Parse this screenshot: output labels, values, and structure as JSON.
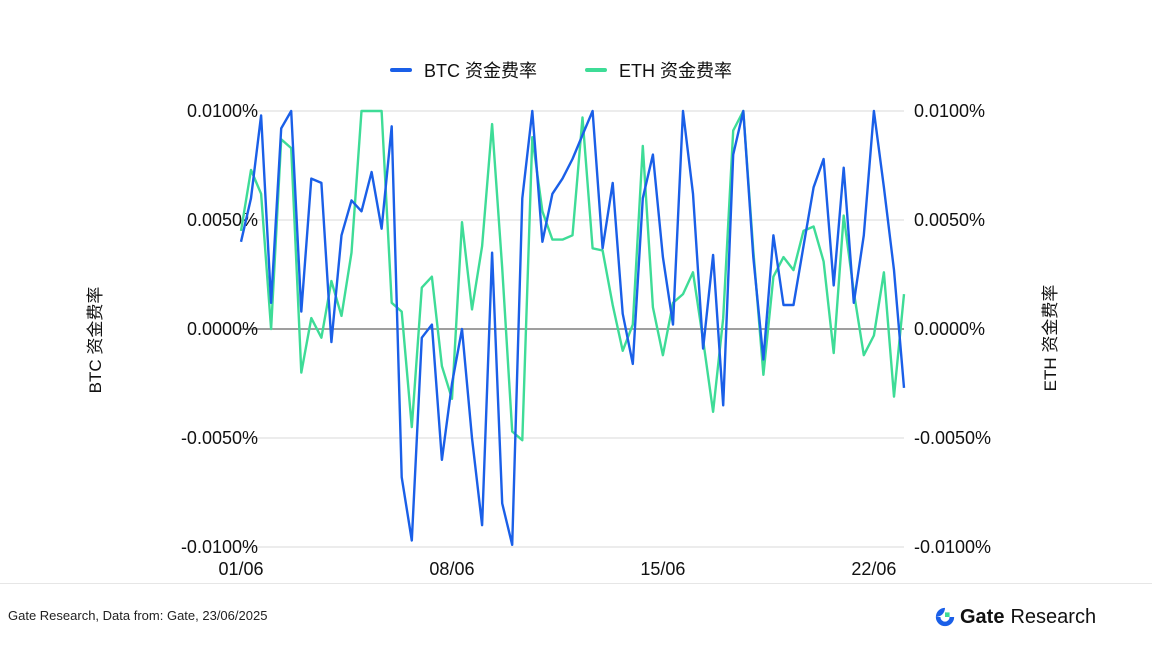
{
  "chart_data": {
    "type": "line",
    "title": "",
    "ylabel_left": "BTC 资金费率",
    "ylabel_right": "ETH 资金费率",
    "ylim": [
      -0.0001,
      0.0001
    ],
    "yticks": [
      "0.0100%",
      "0.0050%",
      "0.0000%",
      "-0.0050%",
      "-0.0100%"
    ],
    "ytick_values": [
      0.0001,
      5e-05,
      0,
      -5e-05,
      -0.0001
    ],
    "xtick_labels": [
      "01/06",
      "08/06",
      "15/06",
      "22/06"
    ],
    "xtick_index": [
      0,
      21,
      42,
      63
    ],
    "grid": true,
    "legend_position": "top-center",
    "series": [
      {
        "name": "BTC 资金费率",
        "color": "#1a5fe8",
        "values": [
          4e-05,
          6e-05,
          9.8e-05,
          1.2e-05,
          9.2e-05,
          0.0001,
          8e-06,
          6.9e-05,
          6.7e-05,
          -6e-06,
          4.3e-05,
          5.9e-05,
          5.4e-05,
          7.2e-05,
          4.6e-05,
          9.3e-05,
          -6.8e-05,
          -9.7e-05,
          -4e-06,
          2e-06,
          -6e-05,
          -2.5e-05,
          0.0,
          -5e-05,
          -9e-05,
          3.5e-05,
          -8e-05,
          -9.9e-05,
          6e-05,
          0.0001,
          4e-05,
          6.2e-05,
          6.9e-05,
          7.8e-05,
          8.9e-05,
          0.0001,
          3.7e-05,
          6.7e-05,
          7e-06,
          -1.6e-05,
          6e-05,
          8e-05,
          3.3e-05,
          2e-06,
          0.0001,
          6.2e-05,
          -9e-06,
          3.4e-05,
          -3.5e-05,
          8e-05,
          0.0001,
          3.3e-05,
          -1.4e-05,
          4.3e-05,
          1.1e-05,
          1.1e-05,
          3.8e-05,
          6.5e-05,
          7.8e-05,
          2e-05,
          7.4e-05,
          1.2e-05,
          4.3e-05,
          0.0001,
          6.5e-05,
          2.7e-05,
          -2.7e-05
        ]
      },
      {
        "name": "ETH 资金费率",
        "color": "#3edc97",
        "values": [
          4.5e-05,
          7.3e-05,
          6.2e-05,
          0.0,
          8.7e-05,
          8.3e-05,
          -2e-05,
          5e-06,
          -4e-06,
          2.2e-05,
          6e-06,
          3.5e-05,
          0.0001,
          0.0001,
          0.0001,
          1.2e-05,
          8e-06,
          -4.5e-05,
          1.9e-05,
          2.4e-05,
          -1.7e-05,
          -3.2e-05,
          4.9e-05,
          9e-06,
          3.8e-05,
          9.4e-05,
          2.8e-05,
          -4.7e-05,
          -5.1e-05,
          8.8e-05,
          5.4e-05,
          4.1e-05,
          4.1e-05,
          4.3e-05,
          9.7e-05,
          3.7e-05,
          3.6e-05,
          1.1e-05,
          -1e-05,
          2e-06,
          8.4e-05,
          1e-05,
          -1.2e-05,
          1.2e-05,
          1.6e-05,
          2.6e-05,
          -5e-06,
          -3.8e-05,
          5e-06,
          9.1e-05,
          0.0001,
          3.6e-05,
          -2.1e-05,
          2.4e-05,
          3.3e-05,
          2.7e-05,
          4.5e-05,
          4.7e-05,
          3.1e-05,
          -1.1e-05,
          5.2e-05,
          1.7e-05,
          -1.2e-05,
          -3e-06,
          2.6e-05,
          -3.1e-05,
          1.6e-05
        ]
      }
    ]
  },
  "footer": {
    "source": "Gate Research, Data from: Gate, 23/06/2025",
    "brand_name": "Gate",
    "brand_suffix": "Research"
  }
}
